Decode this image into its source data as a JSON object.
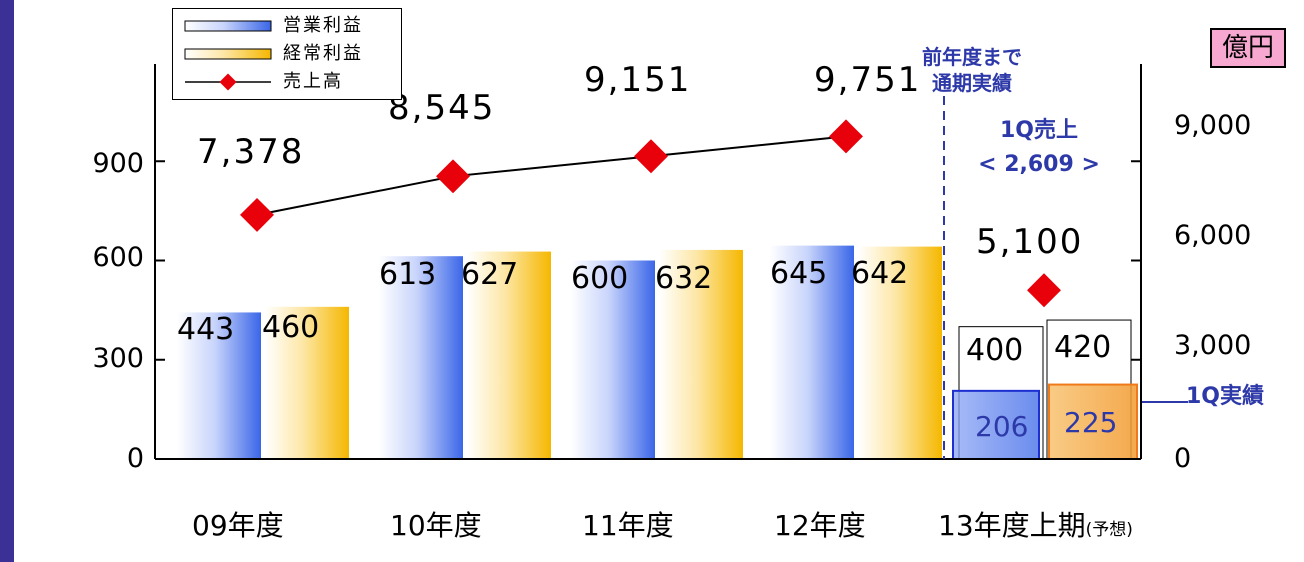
{
  "chart_data": {
    "type": "bar",
    "categories": [
      "09年度",
      "10年度",
      "11年度",
      "12年度",
      "13年度上期"
    ],
    "category_note": "(予想)",
    "series": [
      {
        "name": "営業利益",
        "type": "bar",
        "axis": "left",
        "values": [
          443,
          613,
          600,
          645,
          400
        ],
        "labels": [
          "443",
          "613",
          "600",
          "645",
          "400"
        ],
        "color": "#3a66e8"
      },
      {
        "name": "経常利益",
        "type": "bar",
        "axis": "left",
        "values": [
          460,
          627,
          632,
          642,
          420
        ],
        "labels": [
          "460",
          "627",
          "632",
          "642",
          "420"
        ],
        "color": "#f5b700"
      },
      {
        "name": "売上高",
        "type": "line",
        "axis": "right",
        "values": [
          7378,
          8545,
          9151,
          9751,
          5100
        ],
        "labels": [
          "7,378",
          "8,545",
          "9,151",
          "9,751",
          "5,100"
        ],
        "line_points": 4,
        "color": "#e8000a"
      }
    ],
    "q1_actual": {
      "op_value": 206,
      "op_label": "206",
      "ord_value": 225,
      "ord_label": "225",
      "note": "1Q実績"
    },
    "left_axis": {
      "ticks": [
        "0",
        "300",
        "600",
        "900"
      ],
      "values": [
        0,
        300,
        600,
        900
      ],
      "ylim": [
        0,
        1200
      ]
    },
    "right_axis": {
      "ticks": [
        "0",
        "3,000",
        "6,000",
        "9,000"
      ],
      "values": [
        0,
        3000,
        6000,
        9000
      ],
      "ylim": [
        0,
        12000
      ]
    },
    "unit": "億円",
    "annotations": {
      "separator_line1": "前年度まで",
      "separator_line2": "通期実績",
      "q1_sales_line1": "1Q売上",
      "q1_sales_line2": "< 2,609 >"
    },
    "legend_placement": "top-left",
    "grid": false
  },
  "colors": {
    "background_frame": "#3a3096",
    "bar_blue": "#3a66e8",
    "bar_gold": "#f5b700",
    "line_red": "#e8000a",
    "accent_text": "#2d39a8",
    "unit_box": "#f7a8d0"
  }
}
